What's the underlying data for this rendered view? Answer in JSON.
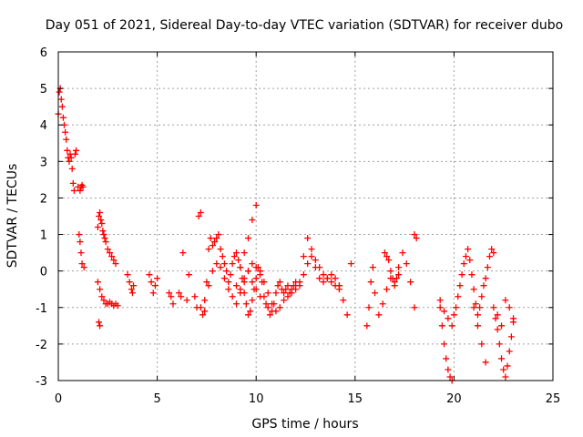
{
  "chart_data": {
    "type": "scatter",
    "title": "Day 051 of 2021, Sidereal Day-to-day VTEC variation (SDTVAR) for receiver dubo",
    "xlabel": "GPS time / hours",
    "ylabel": "SDTVAR / TECUs",
    "xlim": [
      0,
      25
    ],
    "ylim": [
      -3,
      6
    ],
    "xticks": [
      "0",
      "5",
      "10",
      "15",
      "20",
      "25"
    ],
    "yticks": [
      "-3",
      "-2",
      "-1",
      "0",
      "1",
      "2",
      "3",
      "4",
      "5",
      "6"
    ],
    "grid": true,
    "marker": "+",
    "series_color": "#ff0000",
    "series": [
      {
        "name": "SDTVAR",
        "x": [
          0.0,
          0.05,
          0.1,
          0.15,
          0.2,
          0.25,
          0.3,
          0.35,
          0.4,
          0.45,
          0.5,
          0.55,
          0.6,
          0.65,
          0.7,
          0.75,
          0.8,
          0.85,
          0.9,
          1.0,
          1.1,
          1.15,
          1.2,
          1.25,
          1.05,
          1.1,
          1.15,
          1.2,
          1.3,
          2.0,
          2.05,
          2.1,
          2.15,
          2.2,
          2.25,
          2.3,
          2.35,
          2.4,
          2.5,
          2.6,
          2.7,
          2.8,
          2.9,
          2.0,
          2.1,
          2.2,
          2.3,
          2.4,
          2.5,
          2.6,
          2.7,
          2.8,
          2.9,
          3.0,
          2.05,
          2.1,
          3.5,
          3.6,
          3.7,
          3.75,
          3.8,
          4.6,
          4.7,
          4.8,
          4.9,
          5.0,
          5.6,
          5.7,
          5.8,
          6.1,
          6.2,
          6.3,
          6.5,
          6.6,
          6.9,
          7.0,
          7.1,
          7.2,
          7.3,
          7.4,
          7.5,
          7.6,
          7.7,
          7.8,
          7.9,
          8.0,
          8.1,
          8.2,
          8.3,
          8.4,
          8.5,
          8.6,
          8.7,
          8.8,
          8.9,
          9.0,
          9.1,
          9.2,
          9.3,
          9.4,
          9.5,
          9.6,
          9.7,
          9.8,
          9.9,
          10.0,
          10.1,
          10.2,
          10.3,
          10.4,
          10.5,
          10.6,
          10.7,
          10.8,
          10.9,
          11.0,
          11.1,
          11.2,
          11.3,
          11.4,
          11.5,
          11.6,
          11.7,
          11.8,
          11.9,
          12.0,
          7.2,
          7.4,
          7.6,
          7.8,
          8.0,
          8.2,
          8.4,
          8.6,
          8.8,
          9.0,
          9.2,
          9.4,
          9.6,
          9.8,
          10.0,
          9.0,
          9.2,
          9.4,
          9.6,
          9.8,
          10.0,
          10.2,
          10.4,
          10.6,
          10.8,
          11.0,
          11.2,
          11.4,
          11.6,
          11.8,
          12.0,
          12.2,
          12.4,
          12.6,
          12.8,
          13.0,
          13.2,
          13.4,
          13.6,
          13.8,
          14.0,
          14.2,
          9.2,
          9.4,
          9.6,
          9.8,
          10.0,
          10.2,
          12.2,
          12.4,
          12.6,
          12.8,
          13.0,
          13.2,
          13.4,
          13.6,
          13.8,
          14.0,
          14.2,
          14.2,
          14.4,
          14.6,
          14.8,
          15.6,
          15.7,
          15.8,
          15.9,
          16.0,
          16.2,
          16.4,
          16.6,
          16.8,
          17.0,
          17.2,
          17.4,
          17.6,
          17.8,
          18.0,
          16.5,
          16.6,
          16.7,
          16.8,
          16.9,
          17.0,
          17.1,
          17.2,
          18.0,
          18.1,
          19.3,
          19.4,
          19.5,
          19.6,
          19.7,
          19.8,
          19.9,
          19.3,
          19.5,
          19.7,
          19.9,
          20.0,
          20.1,
          20.2,
          20.3,
          20.4,
          20.5,
          20.6,
          20.7,
          20.8,
          20.9,
          21.0,
          21.1,
          21.2,
          21.3,
          21.4,
          21.5,
          21.6,
          21.7,
          21.8,
          21.9,
          22.0,
          21.0,
          21.2,
          21.4,
          21.6,
          22.0,
          22.1,
          22.2,
          22.3,
          22.4,
          22.5,
          22.6,
          22.7,
          22.8,
          22.9,
          23.0,
          22.2,
          22.4,
          22.6,
          22.8,
          23.0
        ],
        "y": [
          4.3,
          4.9,
          5.0,
          4.7,
          4.5,
          4.2,
          4.0,
          3.8,
          3.6,
          3.3,
          3.1,
          3.0,
          3.2,
          3.1,
          2.8,
          2.4,
          2.2,
          3.2,
          3.3,
          2.3,
          2.2,
          2.3,
          2.35,
          2.3,
          1.0,
          0.8,
          0.5,
          0.2,
          0.1,
          1.2,
          1.5,
          1.6,
          1.4,
          1.3,
          1.1,
          1.0,
          0.9,
          0.8,
          0.6,
          0.5,
          0.4,
          0.3,
          0.2,
          -0.3,
          -0.5,
          -0.7,
          -0.8,
          -0.9,
          -0.9,
          -0.85,
          -0.9,
          -0.95,
          -0.9,
          -0.95,
          -1.4,
          -1.5,
          -0.1,
          -0.3,
          -0.5,
          -0.6,
          -0.4,
          -0.1,
          -0.3,
          -0.6,
          -0.4,
          -0.2,
          -0.6,
          -0.7,
          -0.9,
          -0.6,
          -0.7,
          0.5,
          -0.8,
          -0.1,
          -0.7,
          -1.0,
          1.5,
          1.6,
          -1.2,
          -1.1,
          -0.3,
          0.6,
          0.9,
          0.7,
          0.8,
          0.9,
          1.0,
          0.6,
          0.4,
          0.2,
          0.0,
          -0.3,
          -0.1,
          0.2,
          0.4,
          0.5,
          0.3,
          0.1,
          -0.2,
          -0.6,
          -0.9,
          -1.2,
          -1.1,
          -0.8,
          -0.5,
          -0.2,
          0.1,
          0.0,
          -0.3,
          -0.7,
          -0.9,
          -1.0,
          -1.2,
          -1.1,
          -0.9,
          -0.6,
          -0.4,
          -0.3,
          -0.5,
          -0.6,
          -0.5,
          -0.4,
          -0.6,
          -0.5,
          -0.4,
          -0.3,
          -1.0,
          -0.8,
          -0.4,
          0.0,
          0.2,
          0.1,
          -0.2,
          -0.5,
          -0.7,
          -0.4,
          0.1,
          0.5,
          0.9,
          1.4,
          1.8,
          -0.9,
          -0.6,
          -0.3,
          0.0,
          0.2,
          0.1,
          -0.1,
          -0.3,
          -0.6,
          -0.9,
          -1.1,
          -1.0,
          -0.8,
          -0.7,
          -0.6,
          -0.5,
          -0.3,
          0.4,
          0.9,
          0.6,
          0.1,
          -0.2,
          -0.3,
          -0.2,
          -0.1,
          -0.2,
          -0.4,
          -0.5,
          -0.2,
          0.0,
          -0.3,
          -0.5,
          -0.7,
          -0.4,
          -0.1,
          0.2,
          0.4,
          0.3,
          0.1,
          -0.1,
          -0.2,
          -0.3,
          -0.4,
          -0.5,
          -0.4,
          -0.8,
          -1.2,
          0.2,
          -1.5,
          -1.0,
          -0.3,
          0.1,
          -0.6,
          -1.2,
          -0.9,
          -0.5,
          -0.2,
          -0.3,
          0.1,
          0.5,
          0.2,
          -0.3,
          -1.0,
          0.5,
          0.4,
          0.3,
          0.0,
          -0.2,
          -0.4,
          -0.2,
          -0.1,
          1.0,
          0.9,
          -1.0,
          -1.5,
          -2.0,
          -2.4,
          -2.7,
          -2.9,
          -3.0,
          -0.8,
          -1.1,
          -1.3,
          -1.5,
          -1.2,
          -1.0,
          -0.7,
          -0.4,
          -0.1,
          0.2,
          0.4,
          0.6,
          0.3,
          -0.1,
          -0.5,
          -0.9,
          -1.2,
          -1.0,
          -0.7,
          -0.4,
          -0.2,
          0.1,
          0.4,
          0.6,
          0.5,
          -1.0,
          -1.5,
          -2.0,
          -2.5,
          -1.0,
          -1.3,
          -1.6,
          -2.0,
          -2.4,
          -2.7,
          -2.9,
          -2.6,
          -2.2,
          -1.8,
          -1.4,
          -1.2,
          -1.5,
          -0.8,
          -1.0,
          -1.3
        ]
      }
    ]
  }
}
